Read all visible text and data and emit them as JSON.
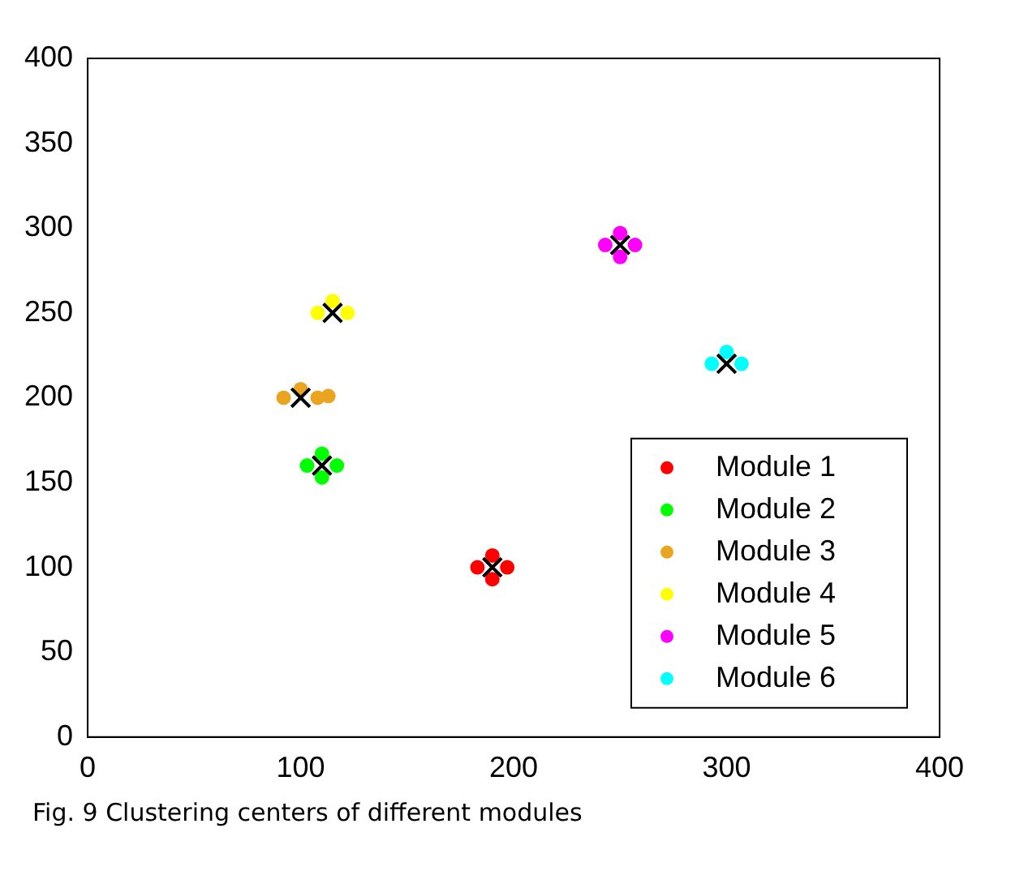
{
  "chart_data": {
    "type": "scatter",
    "xlim": [
      0,
      400
    ],
    "ylim": [
      0,
      400
    ],
    "xticks": [
      0,
      100,
      200,
      300,
      400
    ],
    "yticks": [
      0,
      50,
      100,
      150,
      200,
      250,
      300,
      350,
      400
    ],
    "grid": false,
    "legend": "bottom right",
    "marker": "circle",
    "annotations": [
      "Fig. 9 Clustering centers of different modules"
    ],
    "series": [
      {
        "name": "Module 1",
        "color": "#ff0000",
        "x": [
          183,
          197,
          190,
          190
        ],
        "values": [
          100,
          100,
          93,
          107
        ]
      },
      {
        "name": "Module 2",
        "color": "#00ff00",
        "x": [
          103,
          117,
          110,
          110
        ],
        "values": [
          160,
          160,
          153,
          167
        ]
      },
      {
        "name": "Module 3",
        "color": "#eaa520",
        "x": [
          92,
          108,
          100,
          113
        ],
        "values": [
          200,
          200,
          205,
          201
        ]
      },
      {
        "name": "Module 4",
        "color": "#ffff00",
        "x": [
          108,
          122,
          115
        ],
        "values": [
          250,
          250,
          257
        ]
      },
      {
        "name": "Module 5",
        "color": "#ff00ff",
        "x": [
          243,
          257,
          250,
          250
        ],
        "values": [
          290,
          290,
          283,
          297
        ]
      },
      {
        "name": "Module 6",
        "color": "#00ffff",
        "x": [
          293,
          307,
          300
        ],
        "values": [
          220,
          220,
          227
        ]
      },
      {
        "type": "scatter",
        "marker": "cross",
        "color": "#000000",
        "x": [
          190,
          110,
          100,
          115,
          250,
          300
        ],
        "values": [
          100,
          160,
          200,
          250,
          290,
          220
        ]
      }
    ]
  }
}
